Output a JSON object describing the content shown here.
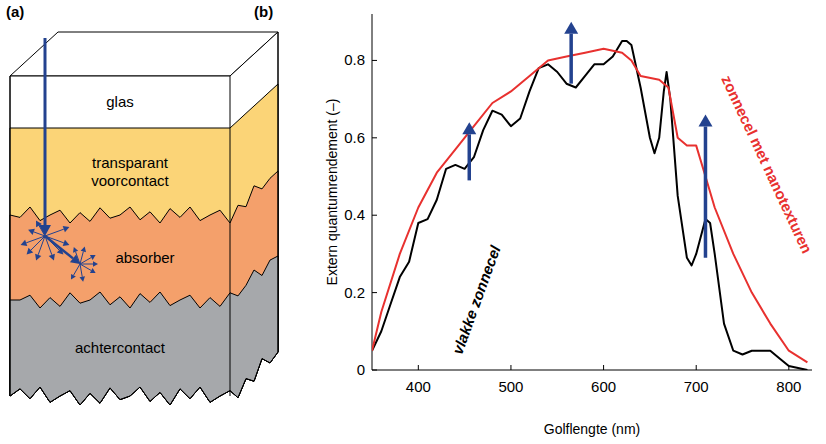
{
  "diagram": {
    "label": "(a)",
    "layers": [
      "glas",
      "transparant voorcontact",
      "absorber",
      "achtercontact"
    ]
  },
  "chart_data": {
    "type": "line",
    "panel_label": "(b)",
    "x_label": "Golflengte (nm)",
    "y_label": "Extern quantumrendement (–)",
    "xlim": [
      350,
      825
    ],
    "ylim": [
      0,
      0.92
    ],
    "xticks": [
      400,
      500,
      600,
      700,
      800
    ],
    "yticks": [
      0,
      0.2,
      0.4,
      0.6,
      0.8
    ],
    "grid": false,
    "series": [
      {
        "name": "vlakke zonnecel",
        "color": "#000000",
        "line_style": "solid",
        "x": [
          350,
          360,
          370,
          380,
          390,
          400,
          410,
          420,
          430,
          440,
          450,
          460,
          470,
          480,
          490,
          500,
          510,
          520,
          530,
          540,
          550,
          560,
          570,
          580,
          590,
          600,
          610,
          620,
          625,
          630,
          640,
          650,
          655,
          660,
          665,
          668,
          672,
          680,
          690,
          695,
          700,
          710,
          715,
          720,
          730,
          740,
          750,
          760,
          770,
          780,
          790,
          800,
          810,
          820
        ],
        "values": [
          0.05,
          0.1,
          0.17,
          0.24,
          0.28,
          0.38,
          0.39,
          0.44,
          0.52,
          0.53,
          0.52,
          0.55,
          0.62,
          0.67,
          0.66,
          0.63,
          0.65,
          0.72,
          0.78,
          0.79,
          0.77,
          0.74,
          0.73,
          0.76,
          0.79,
          0.79,
          0.81,
          0.85,
          0.85,
          0.84,
          0.73,
          0.6,
          0.56,
          0.6,
          0.72,
          0.77,
          0.7,
          0.45,
          0.29,
          0.27,
          0.3,
          0.39,
          0.38,
          0.3,
          0.12,
          0.05,
          0.04,
          0.05,
          0.05,
          0.05,
          0.03,
          0.01,
          0.005,
          0
        ]
      },
      {
        "name": "zonnecel met nanotexturen",
        "color": "#e8312f",
        "line_style": "solid",
        "x": [
          350,
          360,
          380,
          400,
          420,
          440,
          460,
          480,
          500,
          520,
          540,
          560,
          580,
          600,
          620,
          630,
          640,
          660,
          670,
          680,
          690,
          700,
          710,
          720,
          740,
          760,
          780,
          800,
          820
        ],
        "values": [
          0.05,
          0.15,
          0.3,
          0.42,
          0.51,
          0.57,
          0.63,
          0.69,
          0.72,
          0.76,
          0.8,
          0.81,
          0.82,
          0.83,
          0.82,
          0.8,
          0.76,
          0.75,
          0.73,
          0.6,
          0.58,
          0.58,
          0.5,
          0.42,
          0.3,
          0.2,
          0.12,
          0.05,
          0.02
        ]
      }
    ],
    "arrows": [
      {
        "x": 455,
        "from": 0.49,
        "to": 0.64
      },
      {
        "x": 565,
        "from": 0.74,
        "to": 0.9
      },
      {
        "x": 710,
        "from": 0.29,
        "to": 0.66
      }
    ]
  }
}
